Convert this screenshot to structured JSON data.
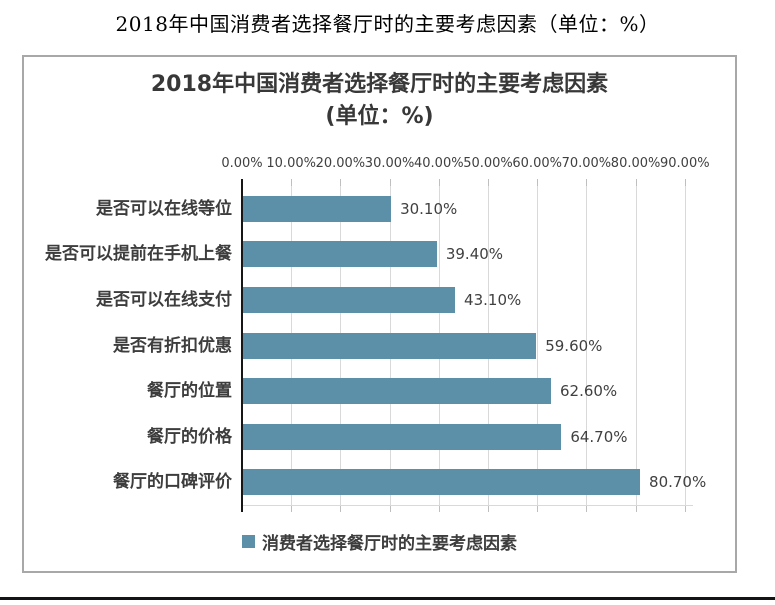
{
  "page": {
    "title": "2018年中国消费者选择餐厅时的主要考虑因素（单位：%）"
  },
  "chart": {
    "title_line1": "2018年中国消费者选择餐厅时的主要考虑因素",
    "title_line2": "(单位：%)",
    "legend_label": "消费者选择餐厅时的主要考虑因素"
  },
  "chart_data": {
    "type": "bar",
    "orientation": "horizontal",
    "title": "2018年中国消费者选择餐厅时的主要考虑因素（单位：%）",
    "categories": [
      "是否可以在线等位",
      "是否可以提前在手机上餐",
      "是否可以在线支付",
      "是否有折扣优惠",
      "餐厅的位置",
      "餐厅的价格",
      "餐厅的口碑评价"
    ],
    "values": [
      30.1,
      39.4,
      43.1,
      59.6,
      62.6,
      64.7,
      80.7
    ],
    "value_labels": [
      "30.10%",
      "39.40%",
      "43.10%",
      "59.60%",
      "62.60%",
      "64.70%",
      "80.70%"
    ],
    "axis_tick_labels": [
      "0.00%",
      "10.00%",
      "20.00%",
      "30.00%",
      "40.00%",
      "50.00%",
      "60.00%",
      "70.00%",
      "80.00%",
      "90.00%"
    ],
    "xlim": [
      0,
      90
    ],
    "tick_step": 10,
    "grid": true,
    "legend": [
      "消费者选择餐厅时的主要考虑因素"
    ],
    "legend_position": "bottom",
    "bar_color": "#5b90a8",
    "gridline_color": "#d9d9d9",
    "axis_color": "#161616",
    "text_color": "#404040"
  }
}
